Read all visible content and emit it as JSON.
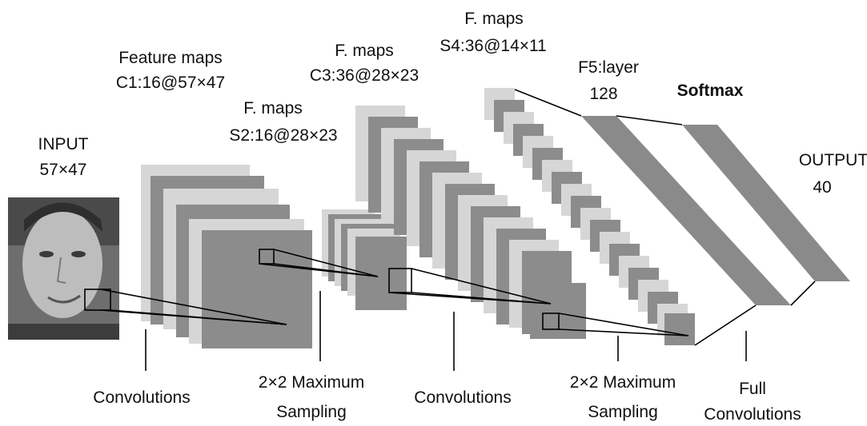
{
  "labels": {
    "input_title": "INPUT",
    "input_size": "57×47",
    "c1_title": "Feature maps",
    "c1_size": "C1:16@57×47",
    "s2_title": "F. maps",
    "s2_size": "S2:16@28×23",
    "c3_title": "F. maps",
    "c3_size": "C3:36@28×23",
    "s4_title": "F. maps",
    "s4_size": "S4:36@14×11",
    "f5_title": "F5:layer",
    "f5_size": "128",
    "softmax": "Softmax",
    "output_title": "OUTPUT",
    "output_size": "40"
  },
  "operations": {
    "conv1": "Convolutions",
    "pool1_line1": "2×2 Maximum",
    "pool1_line2": "Sampling",
    "conv2": "Convolutions",
    "pool2_line1": "2×2 Maximum",
    "pool2_line2": "Sampling",
    "full_line1": "Full",
    "full_line2": "Convolutions"
  },
  "colors": {
    "map_light": "#d6d6d6",
    "map_dark": "#8c8c8c",
    "layer_fill": "#8a8a8a"
  }
}
